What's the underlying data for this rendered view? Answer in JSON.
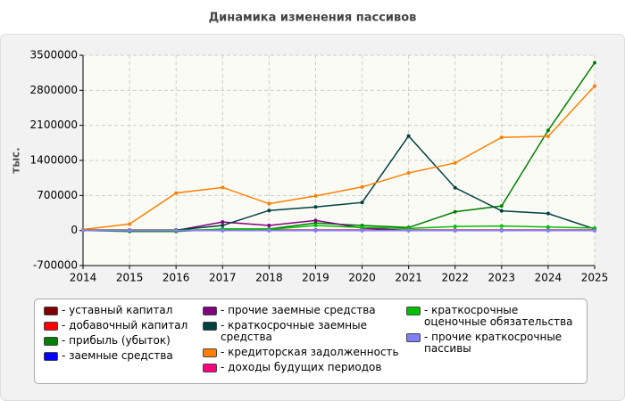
{
  "chart_data": {
    "type": "line",
    "title": "Динамика изменения пассивов",
    "y_label": "тыс.",
    "x": [
      2014,
      2015,
      2016,
      2017,
      2018,
      2019,
      2020,
      2021,
      2022,
      2023,
      2024,
      2025
    ],
    "xlim": [
      2014,
      2025
    ],
    "xticks": [
      2014,
      2015,
      2016,
      2017,
      2018,
      2019,
      2020,
      2021,
      2022,
      2023,
      2024,
      2025
    ],
    "ylim": [
      -700000,
      3500000
    ],
    "yticks": [
      -700000,
      0,
      700000,
      1400000,
      2100000,
      2800000,
      3500000
    ],
    "grid": true,
    "series": [
      {
        "name": "- уставный капитал",
        "color": "#800000",
        "values": [
          10000,
          10000,
          10000,
          10000,
          10000,
          10000,
          10000,
          10000,
          10000,
          10000,
          10000,
          10000
        ]
      },
      {
        "name": "- добавочный капитал",
        "color": "#ff0000",
        "values": [
          0,
          0,
          0,
          0,
          0,
          0,
          0,
          0,
          0,
          0,
          0,
          0
        ]
      },
      {
        "name": "- прибыль (убыток)",
        "color": "#008000",
        "values": [
          0,
          -20000,
          -20000,
          30000,
          30000,
          150000,
          100000,
          60000,
          374000,
          490000,
          2000000,
          3350000
        ]
      },
      {
        "name": "- заемные средства",
        "color": "#0000ff",
        "values": [
          0,
          0,
          0,
          0,
          0,
          0,
          0,
          0,
          0,
          0,
          0,
          0
        ]
      },
      {
        "name": "- прочие заемные средства",
        "color": "#800080",
        "values": [
          0,
          0,
          0,
          170000,
          100000,
          200000,
          50000,
          0,
          0,
          0,
          0,
          0
        ]
      },
      {
        "name": "- краткосрочные заемные средства",
        "color": "#004040",
        "values": [
          0,
          0,
          10000,
          100000,
          400000,
          470000,
          560000,
          1888000,
          855000,
          392000,
          338000,
          30000
        ]
      },
      {
        "name": "- кредиторская задолженность",
        "color": "#ff8000",
        "values": [
          20000,
          130000,
          748000,
          860000,
          534000,
          690000,
          870000,
          1150000,
          1350000,
          1860000,
          1880000,
          2886000
        ]
      },
      {
        "name": "- доходы будущих периодов",
        "color": "#ff0080",
        "values": [
          0,
          0,
          0,
          0,
          0,
          0,
          0,
          0,
          0,
          0,
          0,
          0
        ]
      },
      {
        "name": "- краткосрочные оценочные обязательства",
        "color": "#00c000",
        "values": [
          0,
          0,
          0,
          20000,
          20000,
          100000,
          60000,
          40000,
          80000,
          90000,
          70000,
          50000
        ]
      },
      {
        "name": "- прочие краткосрочные пассивы",
        "color": "#8080ff",
        "values": [
          0,
          0,
          0,
          0,
          0,
          0,
          0,
          0,
          0,
          0,
          0,
          0
        ]
      }
    ]
  }
}
